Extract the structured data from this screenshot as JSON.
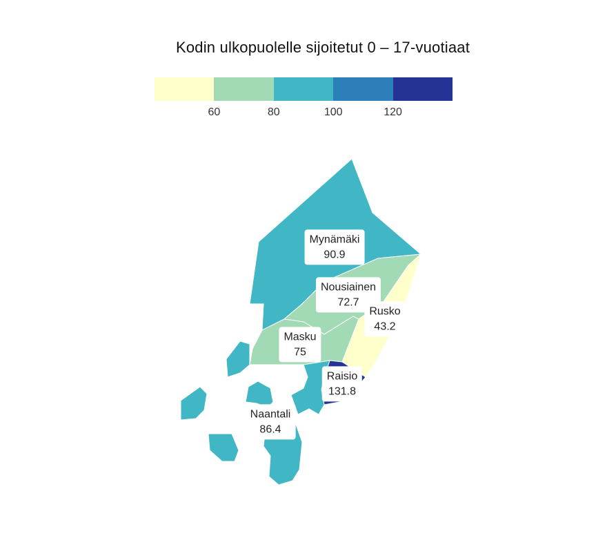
{
  "title": "Kodin ulkopuolelle sijoitetut 0 – 17-vuotiaat",
  "legend": {
    "colors": [
      "#ffffcc",
      "#a1dab4",
      "#41b6c4",
      "#2c7fb8",
      "#253494"
    ],
    "ticks": [
      "60",
      "80",
      "100",
      "120"
    ]
  },
  "regions": [
    {
      "name": "Mynämäki",
      "value": "90.9",
      "color": "#41b6c4"
    },
    {
      "name": "Nousiainen",
      "value": "72.7",
      "color": "#a1dab4"
    },
    {
      "name": "Rusko",
      "value": "43.2",
      "color": "#ffffcc"
    },
    {
      "name": "Masku",
      "value": "75",
      "color": "#a1dab4"
    },
    {
      "name": "Raisio",
      "value": "131.8",
      "color": "#253494"
    },
    {
      "name": "Naantali",
      "value": "86.4",
      "color": "#41b6c4"
    }
  ]
}
